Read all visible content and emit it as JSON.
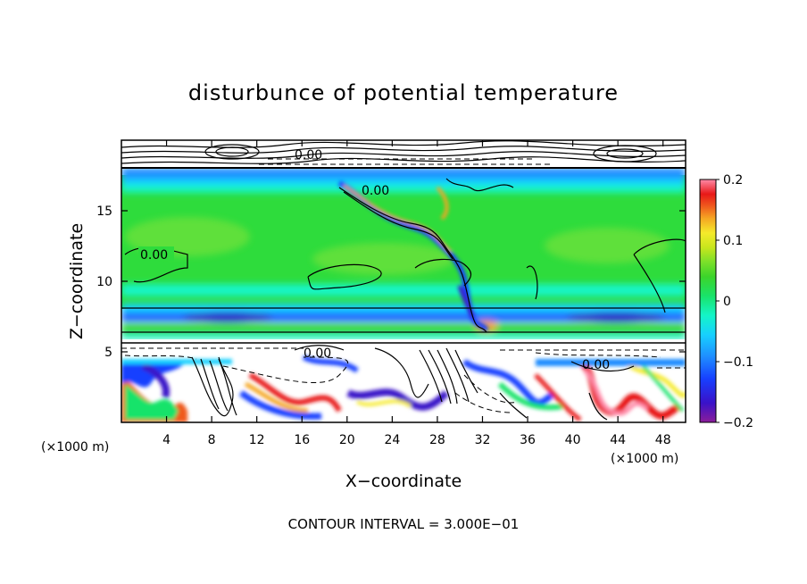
{
  "chart_data": {
    "type": "heatmap",
    "title": "disturbunce of potential temperature",
    "xlabel": "X−coordinate",
    "ylabel": "Z−coordinate",
    "x_unit": "(×1000 m)",
    "y_unit": "(×1000 m)",
    "xlim": [
      0,
      50
    ],
    "ylim": [
      0,
      20
    ],
    "x_ticks": [
      4,
      8,
      12,
      16,
      20,
      24,
      28,
      32,
      36,
      40,
      44,
      48
    ],
    "y_ticks": [
      5,
      10,
      15
    ],
    "colorbar": {
      "min": -0.2,
      "max": 0.2,
      "tick_labels": [
        "0.2",
        "0.1",
        "0",
        "−0.1",
        "−0.2"
      ],
      "tick_values": [
        0.2,
        0.1,
        0,
        -0.1,
        -0.2
      ],
      "colors": [
        "#8b1d9a",
        "#3a12c8",
        "#1740ff",
        "#1f8dff",
        "#17d0ff",
        "#14f5c8",
        "#19e36a",
        "#3cd42a",
        "#7be02a",
        "#c8e61d",
        "#f5ea2b",
        "#f5a623",
        "#ef5a1d",
        "#e81818",
        "#ff8aa8"
      ]
    },
    "contour_interval": "CONTOUR INTERVAL = 3.000E−01",
    "contour_labels": [
      "0.00",
      "0.00",
      "0.00",
      "0.00",
      "0.00"
    ],
    "layers": [
      {
        "z_from": 18,
        "z_to": 20,
        "value": "high (contour dense)"
      },
      {
        "z_from": 17,
        "z_to": 18,
        "value": -0.12
      },
      {
        "z_from": 8,
        "z_to": 17,
        "value": 0.02
      },
      {
        "z_from": 6.5,
        "z_to": 8,
        "value": -0.1
      },
      {
        "z_from": 5.5,
        "z_to": 6.5,
        "value": 0.05
      },
      {
        "z_from": 0,
        "z_to": 5.5,
        "value": "mixed turbulent"
      }
    ]
  }
}
